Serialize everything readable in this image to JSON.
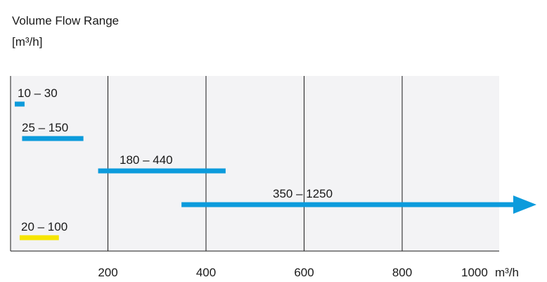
{
  "chart_data": {
    "type": "range-bar",
    "title": "Volume Flow Range",
    "unit_label": "[m³/h]",
    "x_unit": "m³/h",
    "xlim": [
      0,
      1000
    ],
    "x_ticks": [
      200,
      400,
      600,
      800,
      1000
    ],
    "x_tick_labels": [
      "200",
      "400",
      "600",
      "800",
      "1000"
    ],
    "grid": true,
    "colors": {
      "blue": "#0c9bdc",
      "yellow": "#f6e500",
      "plot_bg": "#f3f3f5",
      "grid": "#1a1a1a"
    },
    "ranges": [
      {
        "label": "10 – 30",
        "min": 10,
        "max": 30,
        "color": "#0c9bdc",
        "arrow": false
      },
      {
        "label": "25 – 150",
        "min": 25,
        "max": 150,
        "color": "#0c9bdc",
        "arrow": false
      },
      {
        "label": "180 – 440",
        "min": 180,
        "max": 440,
        "color": "#0c9bdc",
        "arrow": false
      },
      {
        "label": "350 – 1250",
        "min": 350,
        "max": 1250,
        "color": "#0c9bdc",
        "arrow": true
      },
      {
        "label": "20 – 100",
        "min": 20,
        "max": 100,
        "color": "#f6e500",
        "arrow": false
      }
    ]
  }
}
